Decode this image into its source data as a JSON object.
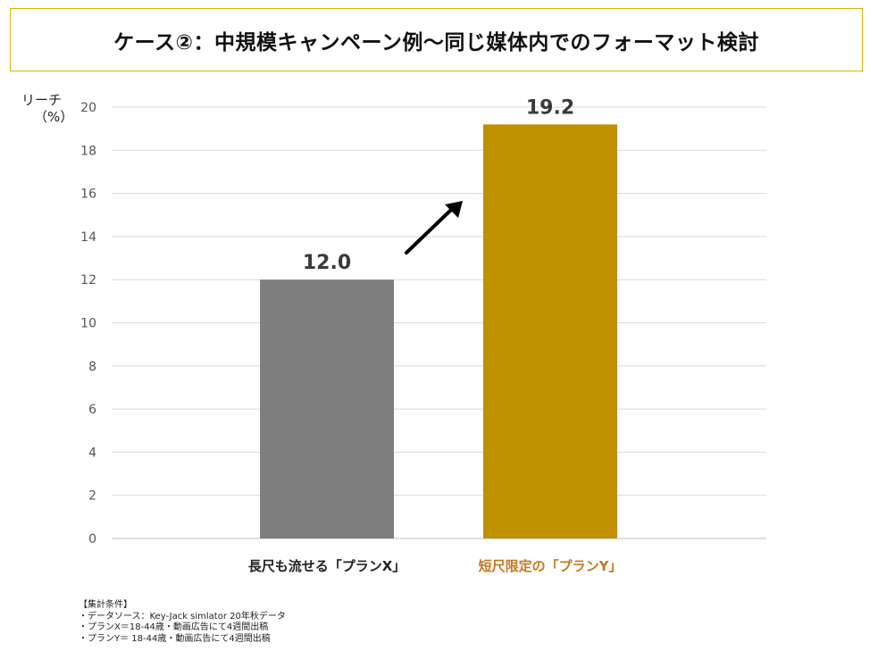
{
  "title": "ケース②：中規模キャンペーン例～同じ媒体内でのフォーマット検討",
  "y_axis_label": {
    "line1": "リーチ",
    "line2": "（%）"
  },
  "chart_data": {
    "type": "bar",
    "title": "",
    "ylabel": "リーチ（%）",
    "xlabel": "",
    "ylim": [
      0,
      20
    ],
    "yticks": [
      0,
      2,
      4,
      6,
      8,
      10,
      12,
      14,
      16,
      18,
      20
    ],
    "grid": true,
    "categories": [
      "長尺も流せる「プランX」",
      "短尺限定の「プランY」"
    ],
    "values": [
      12.0,
      19.2
    ],
    "value_labels": [
      "12.0",
      "19.2"
    ],
    "bar_colors": [
      "#7f7f7f",
      "#bf9000"
    ],
    "category_label_colors": [
      "#222222",
      "#c5781d"
    ],
    "annotation": "arrow-up-right"
  },
  "notes": {
    "heading": "【集計条件】",
    "lines": [
      "・データソース：Key-Jack simlator 20年秋データ",
      "・プランX＝18-44歳・動画広告にて4週間出稿",
      "・プランY＝ 18-44歳・動画広告にて4週間出稿"
    ]
  }
}
